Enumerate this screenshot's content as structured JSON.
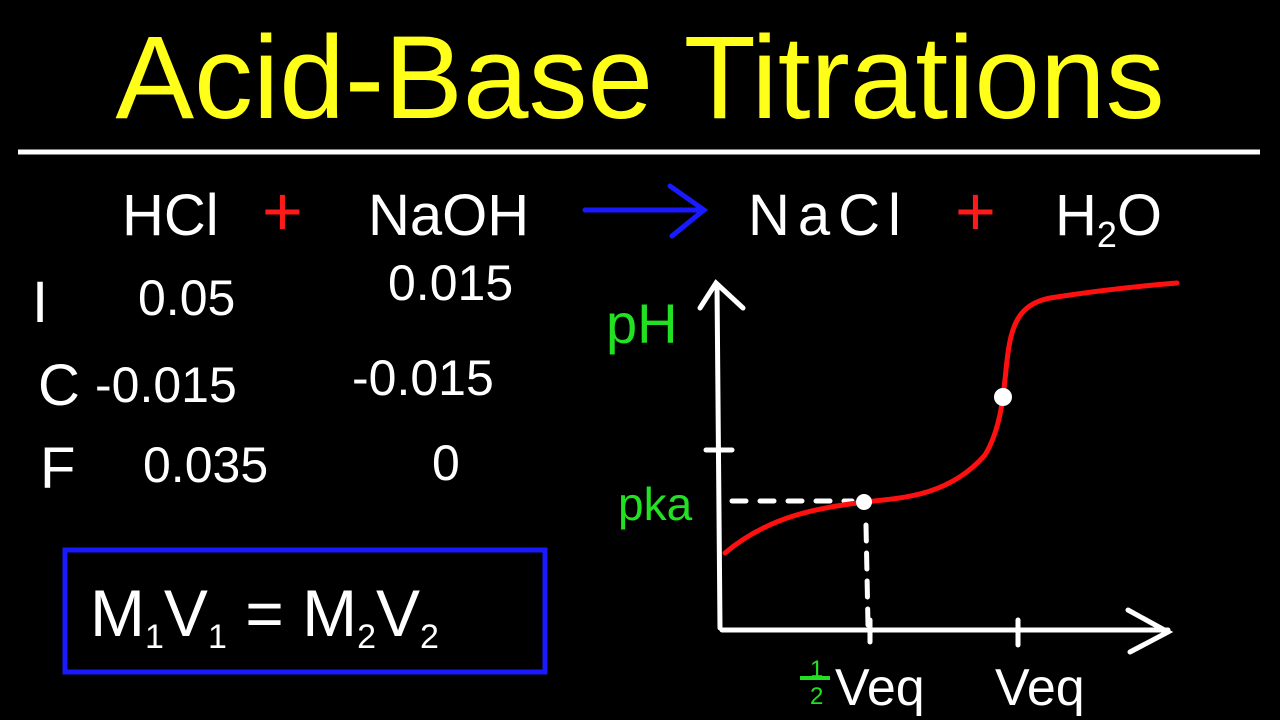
{
  "title": "Acid-Base Titrations",
  "colors": {
    "title": "#ffff1a",
    "chalk": "#ffffff",
    "plus": "#ff1a1a",
    "arrow": "#1a1aff",
    "green": "#22e022",
    "curve": "#ff1010",
    "box": "#1a1aff"
  },
  "equation": {
    "reactant1": "HCl",
    "plus1": "+",
    "reactant2": "NaOH",
    "product1": "NaCl",
    "plus2": "+",
    "product2_base": "H",
    "product2_sub": "2",
    "product2_end": "O"
  },
  "ice_table": {
    "rows": [
      {
        "label": "I",
        "hcl": "0.05",
        "naoh": "0.015"
      },
      {
        "label": "C",
        "hcl": "-0.015",
        "naoh": "-0.015"
      },
      {
        "label": "F",
        "hcl": "0.035",
        "naoh": "0"
      }
    ]
  },
  "formula": {
    "m1": "M",
    "s1": "1",
    "v1": "V",
    "s2": "1",
    "eq": "=",
    "m2": "M",
    "s3": "2",
    "v2": "V",
    "s4": "2"
  },
  "graph": {
    "y_label": "pH",
    "pka_label": "pka",
    "half_num": "1",
    "half_den": "2",
    "half_veq_label": "Veq",
    "veq_label": "Veq"
  }
}
